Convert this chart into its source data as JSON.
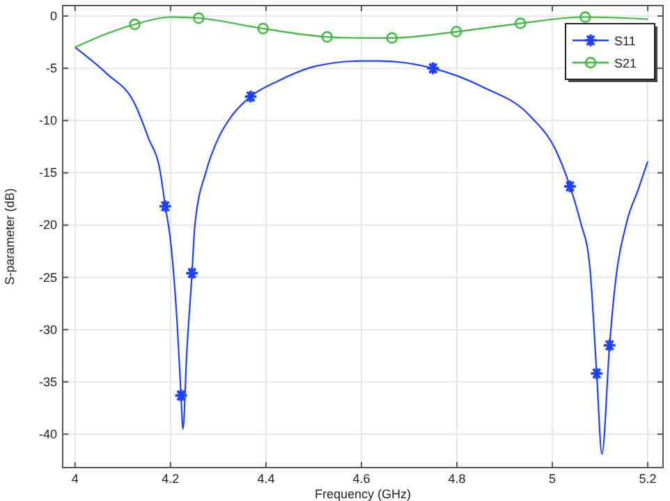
{
  "chart_data": {
    "type": "line",
    "xlabel": "Frequency (GHz)",
    "ylabel": "S-parameter (dB)",
    "xlim": [
      3.974,
      5.232
    ],
    "ylim": [
      -43.2,
      1
    ],
    "xticks": [
      4,
      4.2,
      4.4,
      4.6,
      4.8,
      5,
      5.2
    ],
    "yticks": [
      0,
      -5,
      -10,
      -15,
      -20,
      -25,
      -30,
      -35,
      -40
    ],
    "grid": true,
    "legend": "top right",
    "series": [
      {
        "name": "S11",
        "color": "#2040ff",
        "x": [
          4,
          4.066,
          4.125,
          4.154,
          4.178,
          4.189,
          4.2,
          4.214,
          4.222,
          4.226,
          4.234,
          4.245,
          4.251,
          4.275,
          4.3,
          4.329,
          4.368,
          4.426,
          4.504,
          4.6,
          4.64,
          4.75,
          4.855,
          4.952,
          5.01,
          5.037,
          5.059,
          5.078,
          5.093,
          5.104,
          5.12,
          5.13,
          5.156,
          5.18,
          5.2
        ],
        "values": [
          -3,
          -5.5,
          -8.4,
          -11.7,
          -14.8,
          -18.2,
          -21.5,
          -29.5,
          -36.3,
          -39.5,
          -32.2,
          -24.6,
          -20,
          -14.8,
          -11.7,
          -9.5,
          -7.7,
          -6.2,
          -4.8,
          -4.3,
          -4.3,
          -5,
          -6.8,
          -9.5,
          -13.1,
          -16.3,
          -19.7,
          -23.7,
          -34.2,
          -41.9,
          -31.5,
          -26.4,
          -19.7,
          -16.6,
          -13.9
        ]
      },
      {
        "type": "scatter",
        "marker": "cross",
        "color": "#2040ff",
        "x": [
          4.189,
          4.222,
          4.245,
          4.368,
          4.75,
          5.037,
          5.093,
          5.12
        ],
        "values": [
          -18.2,
          -36.3,
          -24.6,
          -7.7,
          -5,
          -16.3,
          -34.2,
          -31.5
        ]
      },
      {
        "name": "S21",
        "color": "#3cb83c",
        "x": [
          4,
          4.066,
          4.125,
          4.2,
          4.259,
          4.394,
          4.528,
          4.6,
          4.664,
          4.799,
          4.933,
          5.069,
          5.2
        ],
        "values": [
          -3,
          -1.7,
          -0.8,
          -0.1,
          -0.2,
          -1.2,
          -2,
          -2.1,
          -2.1,
          -1.5,
          -0.7,
          -0.1,
          -0.3
        ]
      },
      {
        "type": "scatter",
        "marker": "circle",
        "color": "#3cb83c",
        "x": [
          4.125,
          4.259,
          4.394,
          4.528,
          4.664,
          4.799,
          4.933,
          5.069
        ],
        "values": [
          -0.8,
          -0.2,
          -1.2,
          -2,
          -2.1,
          -1.5,
          -0.7,
          -0.1
        ]
      }
    ]
  }
}
